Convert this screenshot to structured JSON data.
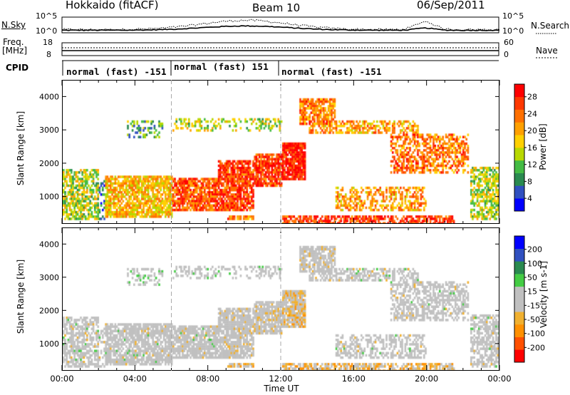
{
  "header": {
    "station": "Hokkaido (fitACF)",
    "beam": "Beam 10",
    "date": "06/Sep/2011"
  },
  "strip_labels": {
    "nsky": "N.Sky",
    "freq_line1": "Freq.",
    "freq_line2": "[MHz]",
    "cpid": "CPID",
    "nsearch": "N.Search",
    "nave": "Nave",
    "sky_ticks": [
      "10^5",
      "10^0"
    ],
    "search_ticks": [
      "10^5",
      "10^0"
    ],
    "freq_ticks": [
      "18",
      "8"
    ],
    "nave_ticks": [
      "60",
      "0"
    ]
  },
  "cpid_segments": [
    {
      "label": "normal (fast) -151",
      "start": 0,
      "end": 6
    },
    {
      "label": "normal (fast) 151",
      "start": 6,
      "end": 12
    },
    {
      "label": "normal (fast) -151",
      "start": 12,
      "end": 24
    }
  ],
  "colors": {
    "power_scale": [
      "#0000ff",
      "#3050c0",
      "#2a8a50",
      "#44bb44",
      "#b8d800",
      "#ffd000",
      "#ffa000",
      "#ff7000",
      "#ff3800",
      "#ff0000"
    ],
    "velocity_scale": [
      "#ff0000",
      "#ff5000",
      "#ff9000",
      "#f0b030",
      "#c0c0c0",
      "#c0c0c0",
      "#44cc44",
      "#2a8a50",
      "#3050c0",
      "#0000ff"
    ],
    "ground_scatter": "#c0c0c0"
  },
  "chart_data": [
    {
      "type": "heatmap",
      "name": "power",
      "ylabel": "Slant Range [km]",
      "x_range_hours": [
        0,
        24
      ],
      "ylim": [
        180,
        4500
      ],
      "y_ticks": [
        1000,
        2000,
        3000,
        4000
      ],
      "colorbar_label": "Power [dB]",
      "colorbar_ticks": [
        "28",
        "24",
        "20",
        "16",
        "12",
        "8",
        "4"
      ],
      "colorbar_range": [
        0,
        30
      ]
    },
    {
      "type": "heatmap",
      "name": "velocity",
      "ylabel": "Slant Range [km]",
      "xlabel": "Time UT",
      "x_range_hours": [
        0,
        24
      ],
      "ylim": [
        180,
        4500
      ],
      "y_ticks": [
        1000,
        2000,
        3000,
        4000
      ],
      "x_ticks": [
        "00:00",
        "04:00",
        "08:00",
        "12:00",
        "16:00",
        "20:00",
        "00:00"
      ],
      "colorbar_label": "Velocity [m s-1]",
      "colorbar_ticks": [
        "200",
        "100",
        "50",
        "15",
        "-15",
        "-50",
        "-100",
        "-200"
      ],
      "colorbar_range": [
        -250,
        250
      ]
    }
  ],
  "scatter_regions": [
    {
      "t0": 0.0,
      "t1": 1.9,
      "r0": 300,
      "r1": 1850,
      "p": 14,
      "v": 0,
      "d": 0.65,
      "g": 0.55
    },
    {
      "t0": 1.9,
      "t1": 2.3,
      "r0": 300,
      "r1": 1500,
      "p": 6,
      "v": 0,
      "d": 0.35,
      "g": 0.4
    },
    {
      "t0": 2.3,
      "t1": 6.0,
      "r0": 350,
      "r1": 1650,
      "p": 18,
      "v": 0,
      "d": 0.8,
      "g": 0.75
    },
    {
      "t0": 6.0,
      "t1": 8.5,
      "r0": 550,
      "r1": 1600,
      "p": 24,
      "v": 0,
      "d": 0.85,
      "g": 0.7
    },
    {
      "t0": 8.5,
      "t1": 10.5,
      "r0": 600,
      "r1": 2100,
      "p": 26,
      "v": -20,
      "d": 0.8,
      "g": 0.6
    },
    {
      "t0": 10.5,
      "t1": 12.0,
      "r0": 1300,
      "r1": 2300,
      "p": 26,
      "v": -30,
      "d": 0.85,
      "g": 0.5
    },
    {
      "t0": 12.0,
      "t1": 13.3,
      "r0": 1500,
      "r1": 2650,
      "p": 28,
      "v": -60,
      "d": 0.9,
      "g": 0.3
    },
    {
      "t0": 13.0,
      "t1": 15.0,
      "r0": 3200,
      "r1": 4000,
      "p": 22,
      "v": -20,
      "d": 0.75,
      "g": 0.6
    },
    {
      "t0": 13.5,
      "t1": 19.5,
      "r0": 2900,
      "r1": 3300,
      "p": 20,
      "v": 0,
      "d": 0.55,
      "g": 0.55
    },
    {
      "t0": 15.0,
      "t1": 20.0,
      "r0": 600,
      "r1": 1300,
      "p": 20,
      "v": 0,
      "d": 0.5,
      "g": 0.6
    },
    {
      "t0": 18.0,
      "t1": 22.3,
      "r0": 1700,
      "r1": 2900,
      "p": 22,
      "v": 0,
      "d": 0.55,
      "g": 0.65
    },
    {
      "t0": 6.0,
      "t1": 12.0,
      "r0": 3000,
      "r1": 3400,
      "p": 14,
      "v": 10,
      "d": 0.35,
      "g": 0.55
    },
    {
      "t0": 3.5,
      "t1": 5.5,
      "r0": 2800,
      "r1": 3300,
      "p": 10,
      "v": 30,
      "d": 0.35,
      "g": 0.4
    },
    {
      "t0": 9.0,
      "t1": 10.5,
      "r0": 300,
      "r1": 450,
      "p": 22,
      "v": -80,
      "d": 0.9,
      "g": 0.1
    },
    {
      "t0": 12.0,
      "t1": 21.5,
      "r0": 200,
      "r1": 420,
      "p": 26,
      "v": -80,
      "d": 0.7,
      "g": 0.3
    },
    {
      "t0": 22.4,
      "t1": 24.0,
      "r0": 300,
      "r1": 1900,
      "p": 14,
      "v": 0,
      "d": 0.65,
      "g": 0.55
    }
  ]
}
